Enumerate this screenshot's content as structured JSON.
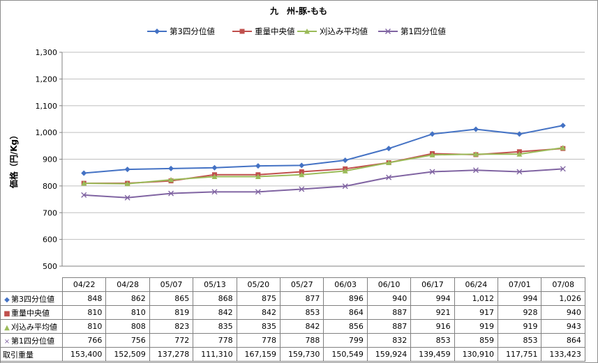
{
  "chart_data": {
    "type": "line",
    "title": "九　州-豚-もも",
    "ylabel": "価格（円/Kg）",
    "ylim": [
      500,
      1300
    ],
    "yticks": [
      "500",
      "600",
      "700",
      "800",
      "900",
      "1,000",
      "1,100",
      "1,200",
      "1,300"
    ],
    "categories": [
      "04/22",
      "04/28",
      "05/07",
      "05/13",
      "05/20",
      "05/27",
      "06/03",
      "06/10",
      "06/17",
      "06/24",
      "07/01",
      "07/08"
    ],
    "grid": true,
    "legend": "top",
    "series": [
      {
        "name": "第3四分位値",
        "color": "#4472c4",
        "marker": "diamond",
        "values": [
          848,
          862,
          865,
          868,
          875,
          877,
          896,
          940,
          994,
          1012,
          994,
          1026
        ],
        "labels": [
          "848",
          "862",
          "865",
          "868",
          "875",
          "877",
          "896",
          "940",
          "994",
          "1,012",
          "994",
          "1,026"
        ]
      },
      {
        "name": "重量中央値",
        "color": "#c0504d",
        "marker": "square",
        "values": [
          810,
          810,
          819,
          842,
          842,
          853,
          864,
          887,
          921,
          917,
          928,
          940
        ],
        "labels": [
          "810",
          "810",
          "819",
          "842",
          "842",
          "853",
          "864",
          "887",
          "921",
          "917",
          "928",
          "940"
        ]
      },
      {
        "name": "刈込み平均値",
        "color": "#9bbb59",
        "marker": "triangle",
        "values": [
          810,
          808,
          823,
          835,
          835,
          842,
          856,
          887,
          916,
          919,
          919,
          943
        ],
        "labels": [
          "810",
          "808",
          "823",
          "835",
          "835",
          "842",
          "856",
          "887",
          "916",
          "919",
          "919",
          "943"
        ]
      },
      {
        "name": "第1四分位値",
        "color": "#8064a2",
        "marker": "x",
        "values": [
          766,
          756,
          772,
          778,
          778,
          788,
          799,
          832,
          853,
          859,
          853,
          864
        ],
        "labels": [
          "766",
          "756",
          "772",
          "778",
          "778",
          "788",
          "799",
          "832",
          "853",
          "859",
          "853",
          "864"
        ]
      }
    ],
    "extra_row": {
      "name": "取引重量",
      "values": [
        153400,
        152509,
        137278,
        111310,
        167159,
        159730,
        150549,
        159924,
        139459,
        130910,
        117751,
        133423
      ],
      "labels": [
        "153,400",
        "152,509",
        "137,278",
        "111,310",
        "167,159",
        "159,730",
        "150,549",
        "159,924",
        "139,459",
        "130,910",
        "117,751",
        "133,423"
      ]
    }
  }
}
